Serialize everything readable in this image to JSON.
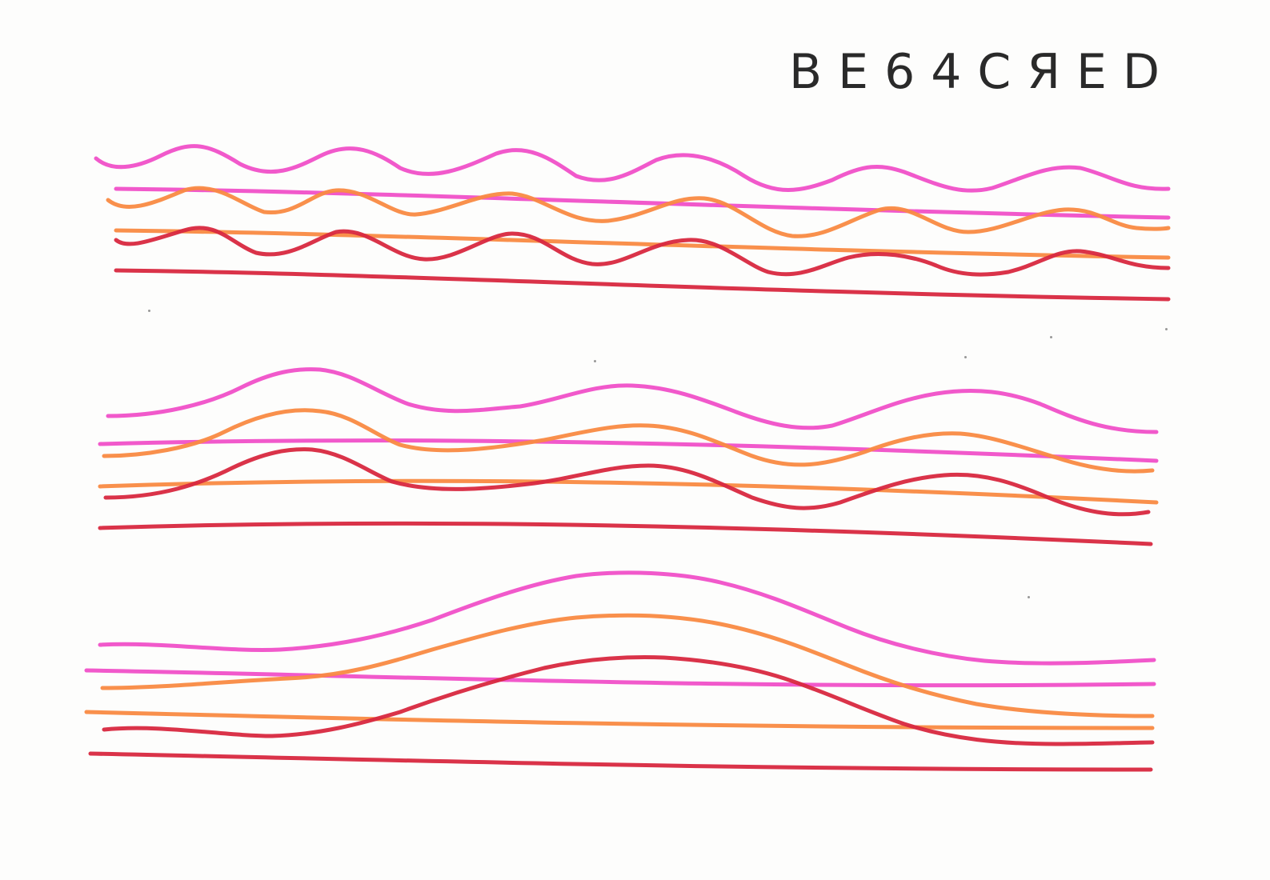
{
  "sketch": {
    "caption": "BE64CЯED",
    "colors": {
      "pink": "#f050c8",
      "orange": "#f98a42",
      "red": "#d8283f"
    },
    "groups": [
      {
        "name": "top-group",
        "wave_cycles": 7,
        "lines": [
          "pink-wave",
          "pink-straight",
          "orange-wave",
          "orange-straight",
          "red-wave",
          "red-straight"
        ]
      },
      {
        "name": "middle-group",
        "wave_cycles": 3,
        "lines": [
          "pink-wave",
          "pink-straight",
          "orange-wave",
          "orange-straight",
          "red-wave",
          "red-straight"
        ]
      },
      {
        "name": "bottom-group",
        "wave_cycles": 1,
        "lines": [
          "pink-wave",
          "pink-straight",
          "orange-wave",
          "orange-straight",
          "red-wave",
          "red-straight"
        ]
      }
    ]
  }
}
